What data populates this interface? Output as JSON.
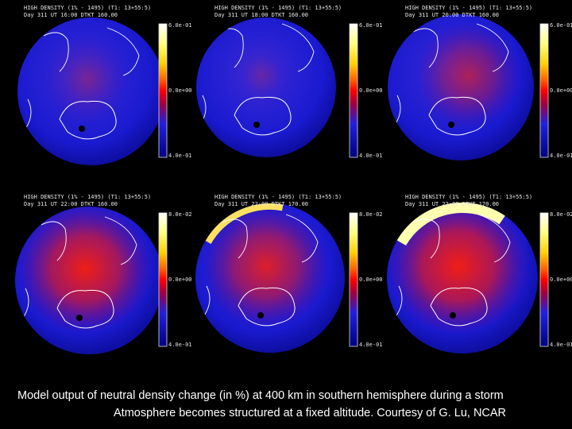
{
  "panels": [
    {
      "header1": "HIGH DENSITY (1% - 1495) (T1: 13+55:5)",
      "header2": "Day  311  UT  16:00  DTKT  160.00",
      "cb_top": "6.0e-01",
      "cb_mid": "0.0e+00",
      "cb_bot": "4.0e-01",
      "intensity": 0.15
    },
    {
      "header1": "HIGH DENSITY (1% - 1495) (T1: 13+55:5)",
      "header2": "Day  311  UT  18:00  DTKT  160.00",
      "cb_top": "6.0e-01",
      "cb_mid": "0.0e+00",
      "cb_bot": "4.0e-01",
      "intensity": 0.05
    },
    {
      "header1": "HIGH DENSITY (1% - 1495) (T1: 13+55:5)",
      "header2": "Day  311  UT  20:00  DTKT  160.00",
      "cb_top": "6.0e-01",
      "cb_mid": "0.0e+00",
      "cb_bot": "4.0e-01",
      "intensity": 0.45
    },
    {
      "header1": "HIGH DENSITY (1% - 1495) (T1: 13+55:5)",
      "header2": "Day  311  UT  22:00  DTKT  160.00",
      "cb_top": "8.0e-02",
      "cb_mid": "0.0e+00",
      "cb_bot": "4.0e-01",
      "intensity": 0.85
    },
    {
      "header1": "HIGH DENSITY (1% - 1495) (T1: 13+55:5)",
      "header2": "Day  311  UT  22:00  DTKT  170.00",
      "cb_top": "8.0e-02",
      "cb_mid": "0.0e+00",
      "cb_bot": "4.0e-01",
      "intensity": 0.7
    },
    {
      "header1": "HIGH DENSITY (1% - 1495) (T1: 13+55:5)",
      "header2": "Day  311  UT  22:00  DTKT  170.00",
      "cb_top": "8.0e-02",
      "cb_mid": "0.0e+00",
      "cb_bot": "4.0e-01",
      "intensity": 0.9
    }
  ],
  "caption": {
    "line1": "Model output of neutral density change (in %)  at 400 km in southern hemisphere during a storm",
    "line2": "Atmosphere becomes structured at a fixed altitude.    Courtesy of G. Lu, NCAR"
  },
  "colors": {
    "low": "#1a1ad8",
    "mid": "#e01010",
    "high": "#ffffaa"
  }
}
